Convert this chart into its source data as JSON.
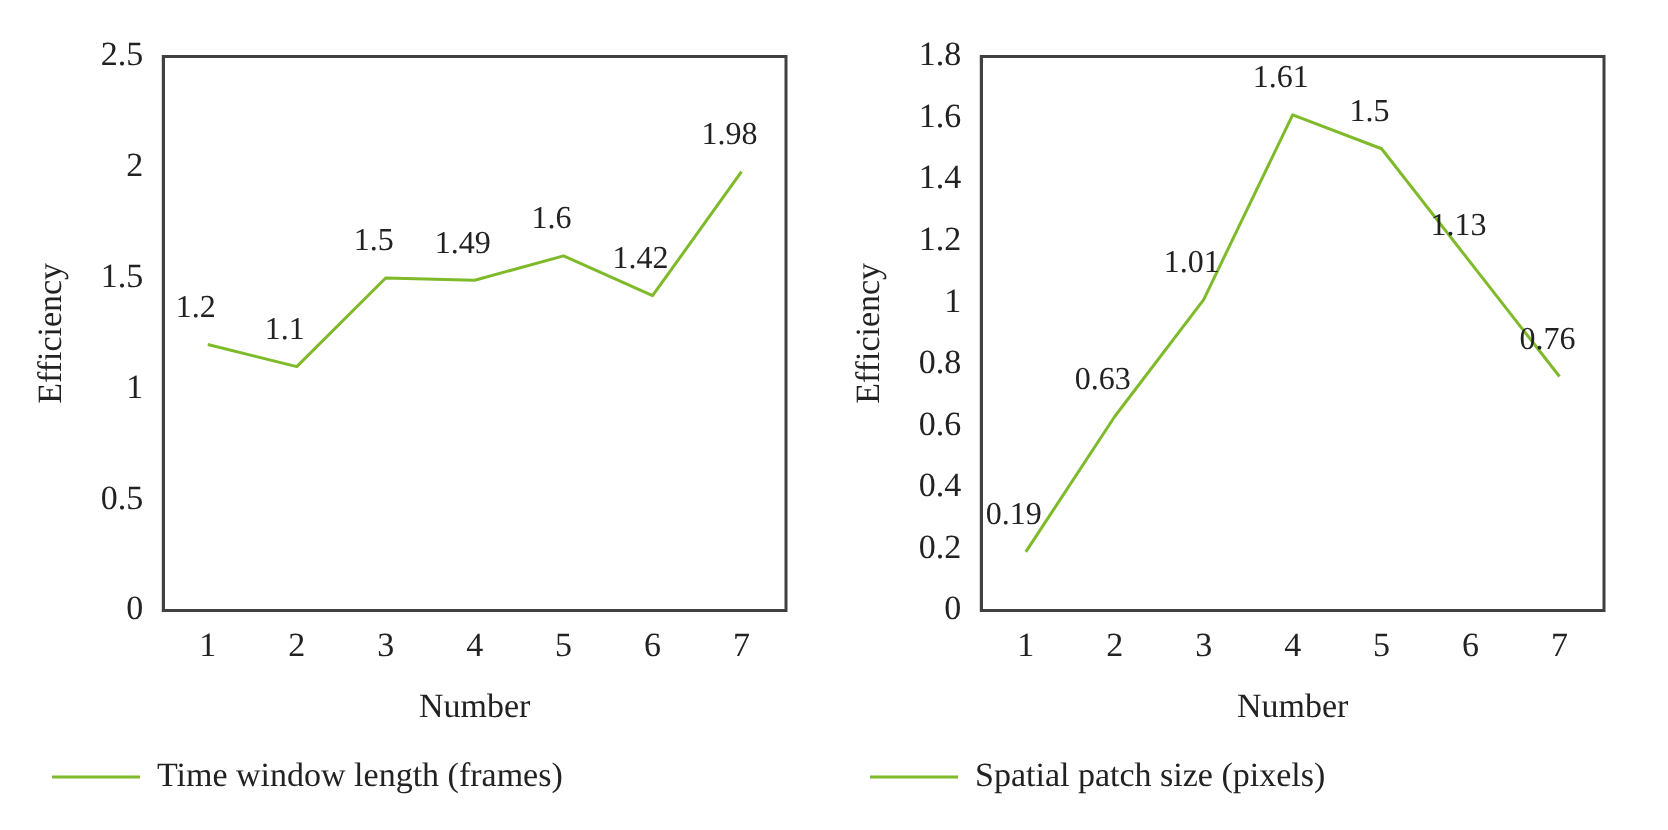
{
  "chart_data": [
    {
      "type": "line",
      "categories": [
        "1",
        "2",
        "3",
        "4",
        "5",
        "6",
        "7"
      ],
      "xlabel": "Number",
      "ylabel": "Efficiency",
      "ylim": [
        0,
        2.5
      ],
      "yticks": [
        0,
        0.5,
        1,
        1.5,
        2,
        2.5
      ],
      "grid": false,
      "legend": "bottom",
      "marker": "none",
      "line_style": "solid",
      "data_labels": true,
      "series": [
        {
          "name": "Time window length (frames)",
          "color": "#7fba2a",
          "values": [
            1.2,
            1.1,
            1.5,
            1.49,
            1.6,
            1.42,
            1.98
          ]
        }
      ]
    },
    {
      "type": "line",
      "categories": [
        "1",
        "2",
        "3",
        "4",
        "5",
        "6",
        "7"
      ],
      "xlabel": "Number",
      "ylabel": "Efficiency",
      "ylim": [
        0,
        1.8
      ],
      "yticks": [
        0,
        0.2,
        0.4,
        0.6,
        0.8,
        1,
        1.2,
        1.4,
        1.6,
        1.8
      ],
      "grid": false,
      "legend": "bottom",
      "marker": "none",
      "line_style": "solid",
      "data_labels": true,
      "series": [
        {
          "name": "Spatial patch size (pixels)",
          "color": "#7fba2a",
          "values": [
            0.19,
            0.63,
            1.01,
            1.61,
            1.5,
            1.13,
            0.76
          ]
        }
      ]
    }
  ]
}
